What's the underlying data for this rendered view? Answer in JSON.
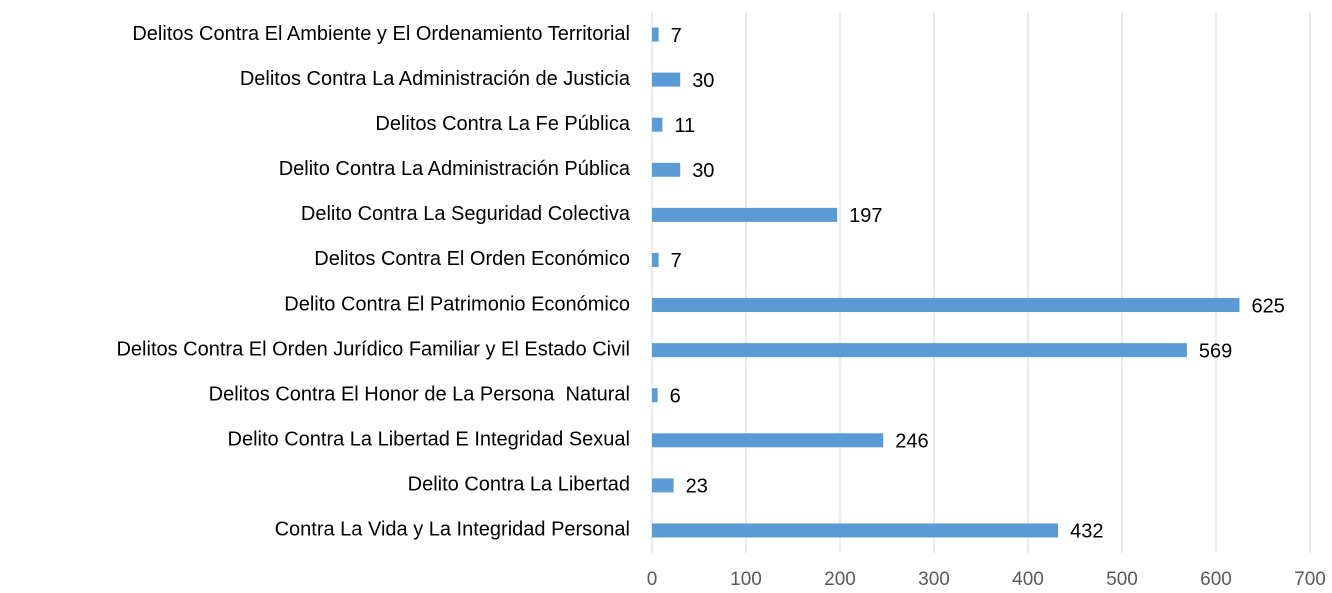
{
  "chart_data": {
    "type": "bar",
    "orientation": "horizontal",
    "categories": [
      "Delitos Contra El Ambiente y El Ordenamiento Territorial",
      "Delitos Contra La Administración de Justicia",
      "Delitos Contra La Fe Pública",
      "Delito Contra La Administración Pública",
      "Delito Contra La Seguridad Colectiva",
      "Delitos Contra El Orden Económico",
      "Delito Contra El Patrimonio Económico",
      "Delitos Contra El Orden Jurídico Familiar y El Estado Civil",
      "Delitos Contra El Honor de La Persona  Natural",
      "Delito Contra La Libertad E Integridad Sexual",
      "Delito Contra La Libertad",
      "Contra La Vida y La Integridad Personal"
    ],
    "values": [
      7,
      30,
      11,
      30,
      197,
      7,
      625,
      569,
      6,
      246,
      23,
      432
    ],
    "color": "#5b9bd5",
    "xlim": [
      0,
      700
    ],
    "xticks": [
      0,
      100,
      200,
      300,
      400,
      500,
      600,
      700
    ],
    "grid": true
  }
}
